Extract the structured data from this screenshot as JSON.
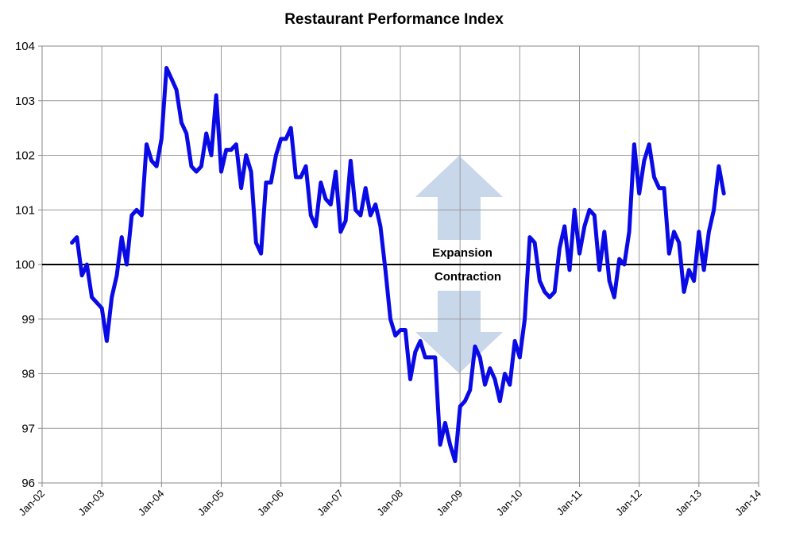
{
  "chart_data": {
    "type": "line",
    "title": "Restaurant Performance Index",
    "x": [
      "2002-07",
      "2002-08",
      "2002-09",
      "2002-10",
      "2002-11",
      "2002-12",
      "2003-01",
      "2003-02",
      "2003-03",
      "2003-04",
      "2003-05",
      "2003-06",
      "2003-07",
      "2003-08",
      "2003-09",
      "2003-10",
      "2003-11",
      "2003-12",
      "2004-01",
      "2004-02",
      "2004-03",
      "2004-04",
      "2004-05",
      "2004-06",
      "2004-07",
      "2004-08",
      "2004-09",
      "2004-10",
      "2004-11",
      "2004-12",
      "2005-01",
      "2005-02",
      "2005-03",
      "2005-04",
      "2005-05",
      "2005-06",
      "2005-07",
      "2005-08",
      "2005-09",
      "2005-10",
      "2005-11",
      "2005-12",
      "2006-01",
      "2006-02",
      "2006-03",
      "2006-04",
      "2006-05",
      "2006-06",
      "2006-07",
      "2006-08",
      "2006-09",
      "2006-10",
      "2006-11",
      "2006-12",
      "2007-01",
      "2007-02",
      "2007-03",
      "2007-04",
      "2007-05",
      "2007-06",
      "2007-07",
      "2007-08",
      "2007-09",
      "2007-10",
      "2007-11",
      "2007-12",
      "2008-01",
      "2008-02",
      "2008-03",
      "2008-04",
      "2008-05",
      "2008-06",
      "2008-07",
      "2008-08",
      "2008-09",
      "2008-10",
      "2008-11",
      "2008-12",
      "2009-01",
      "2009-02",
      "2009-03",
      "2009-04",
      "2009-05",
      "2009-06",
      "2009-07",
      "2009-08",
      "2009-09",
      "2009-10",
      "2009-11",
      "2009-12",
      "2010-01",
      "2010-02",
      "2010-03",
      "2010-04",
      "2010-05",
      "2010-06",
      "2010-07",
      "2010-08",
      "2010-09",
      "2010-10",
      "2010-11",
      "2010-12",
      "2011-01",
      "2011-02",
      "2011-03",
      "2011-04",
      "2011-05",
      "2011-06",
      "2011-07",
      "2011-08",
      "2011-09",
      "2011-10",
      "2011-11",
      "2011-12",
      "2012-01",
      "2012-02",
      "2012-03",
      "2012-04",
      "2012-05",
      "2012-06",
      "2012-07",
      "2012-08",
      "2012-09",
      "2012-10",
      "2012-11",
      "2012-12",
      "2013-01",
      "2013-02",
      "2013-03",
      "2013-04",
      "2013-05",
      "2013-06"
    ],
    "series": [
      {
        "name": "Restaurant Performance Index",
        "color": "#0a0ae6",
        "values": [
          100.4,
          100.5,
          99.8,
          100.0,
          99.4,
          99.3,
          99.2,
          98.6,
          99.4,
          99.8,
          100.5,
          100.0,
          100.9,
          101.0,
          100.9,
          102.2,
          101.9,
          101.8,
          102.3,
          103.6,
          103.4,
          103.2,
          102.6,
          102.4,
          101.8,
          101.7,
          101.8,
          102.4,
          102.0,
          103.1,
          101.7,
          102.1,
          102.1,
          102.2,
          101.4,
          102.0,
          101.7,
          100.4,
          100.2,
          101.5,
          101.5,
          102.0,
          102.3,
          102.3,
          102.5,
          101.6,
          101.6,
          101.8,
          100.9,
          100.7,
          101.5,
          101.2,
          101.1,
          101.7,
          100.6,
          100.8,
          101.9,
          101.0,
          100.9,
          101.4,
          100.9,
          101.1,
          100.7,
          99.9,
          99.0,
          98.7,
          98.8,
          98.8,
          97.9,
          98.4,
          98.6,
          98.3,
          98.3,
          98.3,
          96.7,
          97.1,
          96.7,
          96.4,
          97.4,
          97.5,
          97.7,
          98.5,
          98.3,
          97.8,
          98.1,
          97.9,
          97.5,
          98.0,
          97.8,
          98.6,
          98.3,
          99.0,
          100.5,
          100.4,
          99.7,
          99.5,
          99.4,
          99.5,
          100.3,
          100.7,
          99.9,
          101.0,
          100.2,
          100.7,
          101.0,
          100.9,
          99.9,
          100.6,
          99.7,
          99.4,
          100.1,
          100.0,
          100.6,
          102.2,
          101.3,
          101.9,
          102.2,
          101.6,
          101.4,
          101.4,
          100.2,
          100.6,
          100.4,
          99.5,
          99.9,
          99.7,
          100.6,
          99.9,
          100.6,
          101.0,
          101.8,
          101.3
        ]
      }
    ],
    "xlim": [
      "2002-01",
      "2014-01"
    ],
    "xticks": [
      {
        "value": "2002-01",
        "label": "Jan-02"
      },
      {
        "value": "2003-01",
        "label": "Jan-03"
      },
      {
        "value": "2004-01",
        "label": "Jan-04"
      },
      {
        "value": "2005-01",
        "label": "Jan-05"
      },
      {
        "value": "2006-01",
        "label": "Jan-06"
      },
      {
        "value": "2007-01",
        "label": "Jan-07"
      },
      {
        "value": "2008-01",
        "label": "Jan-08"
      },
      {
        "value": "2009-01",
        "label": "Jan-09"
      },
      {
        "value": "2010-01",
        "label": "Jan-10"
      },
      {
        "value": "2011-01",
        "label": "Jan-11"
      },
      {
        "value": "2012-01",
        "label": "Jan-12"
      },
      {
        "value": "2013-01",
        "label": "Jan-13"
      },
      {
        "value": "2014-01",
        "label": "Jan-14"
      }
    ],
    "ylim": [
      96,
      104
    ],
    "yticks": [
      96,
      97,
      98,
      99,
      100,
      101,
      102,
      103,
      104
    ],
    "grid": true,
    "hline": 100,
    "annotations": [
      "Expansion",
      "Contraction"
    ]
  }
}
